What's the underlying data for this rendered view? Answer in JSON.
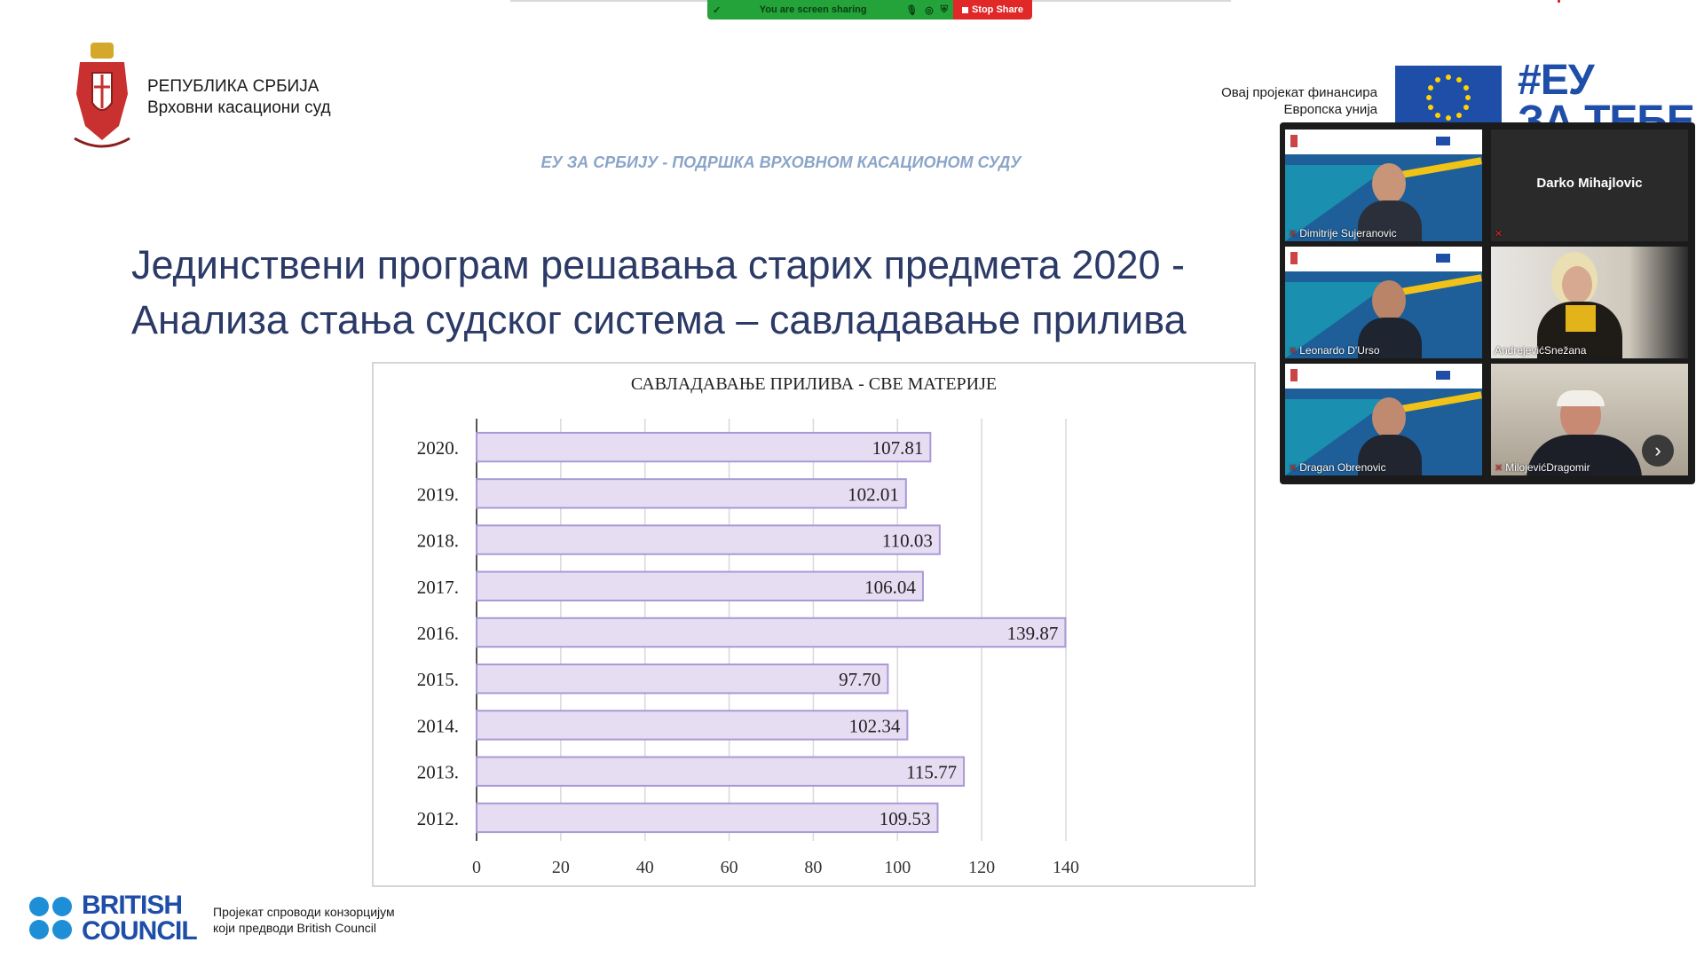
{
  "zoom": {
    "share_status": "You are screen sharing",
    "stop_share_label": "Stop Share"
  },
  "header": {
    "org_line1": "РЕПУБЛИКА СРБИЈА",
    "org_line2": "Врховни касациони суд",
    "eu_funding_line1": "Овај пројекат финансира",
    "eu_funding_line2": "Европска унија",
    "eu_slogan_line1": "#ЕУ",
    "eu_slogan_line2": "ЗА ТЕБЕ",
    "project_line": "ЕУ ЗА СРБИЈУ - ПОДРШКА ВРХОВНОМ КАСАЦИОНОМ СУДУ"
  },
  "slide": {
    "title_line1": "Јединствени програм решавања старих предмета 2020 -",
    "title_line2": "Анализа стања судског система – савладавање прилива"
  },
  "chart_data": {
    "type": "bar",
    "orientation": "horizontal",
    "title": "САВЛАДАВАЊЕ ПРИЛИВА - СВЕ МАТЕРИЈЕ",
    "categories": [
      "2020.",
      "2019.",
      "2018.",
      "2017.",
      "2016.",
      "2015.",
      "2014.",
      "2013.",
      "2012."
    ],
    "values": [
      107.81,
      102.01,
      110.03,
      106.04,
      139.87,
      97.7,
      102.34,
      115.77,
      109.53
    ],
    "value_labels": [
      "107.81",
      "102.01",
      "110.03",
      "106.04",
      "139.87",
      "97.70",
      "102.34",
      "115.77",
      "109.53"
    ],
    "xlim": [
      0,
      140
    ],
    "xticks": [
      "0",
      "20",
      "40",
      "60",
      "80",
      "100",
      "120",
      "140"
    ],
    "grid": true,
    "bar_color": "#e6ddf3",
    "bar_border": "#a99ad6"
  },
  "footer": {
    "british_council_line1": "BRITISH",
    "british_council_line2": "COUNCIL",
    "text_line1": "Пројекат спроводи конзорцијум",
    "text_line2": "који предводи British Council"
  },
  "participants": [
    {
      "name": "Dimitrije Sujeranovic"
    },
    {
      "name": "Darko Mihajlovic"
    },
    {
      "name": "Leonardo D'Urso"
    },
    {
      "name": "AndrejevićSnežana"
    },
    {
      "name": "Dragan Obrenovic"
    },
    {
      "name": "MilojevićDragomir"
    }
  ]
}
